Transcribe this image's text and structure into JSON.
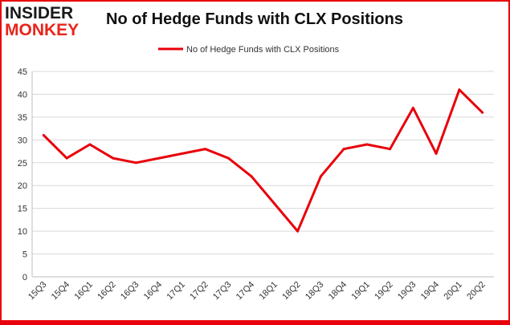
{
  "brand": {
    "line1": "INSIDER",
    "line2": "MONKEY",
    "dark_color": "#1a1a1a",
    "accent_color": "#e8241c"
  },
  "chart_data": {
    "type": "line",
    "title": "No of Hedge Funds with CLX Positions",
    "categories": [
      "15Q3",
      "15Q4",
      "16Q1",
      "16Q2",
      "16Q3",
      "16Q4",
      "17Q1",
      "17Q2",
      "17Q3",
      "17Q4",
      "18Q1",
      "18Q2",
      "18Q3",
      "18Q4",
      "19Q1",
      "19Q2",
      "19Q3",
      "19Q4",
      "20Q1",
      "20Q2"
    ],
    "series": [
      {
        "name": "No of Hedge Funds with CLX Positions",
        "color": "#e8000b",
        "values": [
          31,
          26,
          29,
          26,
          25,
          26,
          27,
          28,
          26,
          22,
          16,
          10,
          22,
          28,
          29,
          28,
          37,
          27,
          41,
          36
        ]
      }
    ],
    "ylim": [
      0,
      45
    ],
    "yticks": [
      0,
      5,
      10,
      15,
      20,
      25,
      30,
      35,
      40,
      45
    ],
    "grid": true,
    "legend": "top-center",
    "frame_color": "#e8000b"
  }
}
